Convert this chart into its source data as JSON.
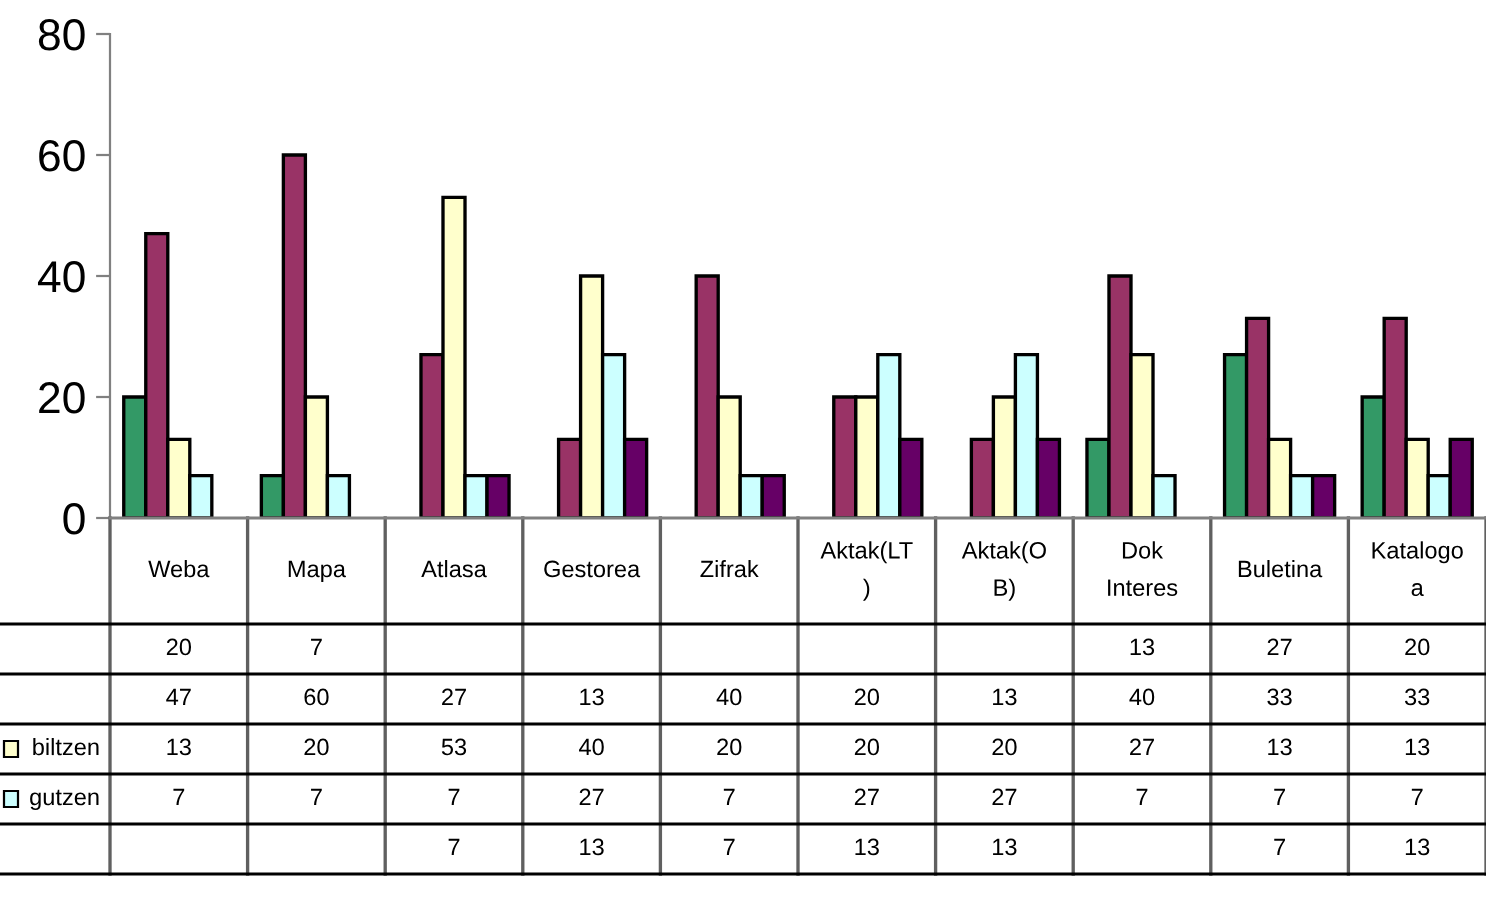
{
  "chart_data": {
    "type": "bar",
    "categories": [
      "Weba",
      "Mapa",
      "Atlasa",
      "Gestorea",
      "Zifrak",
      "Aktak(LT\n)",
      "Aktak(O\nB)",
      "Dok\nInteres",
      "Buletina",
      "Katalogo\na"
    ],
    "series": [
      {
        "color": "#339966",
        "values": [
          20,
          7,
          null,
          null,
          null,
          null,
          null,
          13,
          27,
          20
        ]
      },
      {
        "color": "#993366",
        "values": [
          47,
          60,
          27,
          13,
          40,
          20,
          13,
          40,
          33,
          33
        ]
      },
      {
        "name": "biltzen",
        "color": "#ffffcc",
        "values": [
          13,
          20,
          53,
          40,
          20,
          20,
          20,
          27,
          13,
          13
        ]
      },
      {
        "name": "gutzen",
        "color": "#ccffff",
        "values": [
          7,
          7,
          7,
          27,
          7,
          27,
          27,
          7,
          7,
          7
        ]
      },
      {
        "color": "#660066",
        "values": [
          null,
          null,
          7,
          13,
          7,
          13,
          13,
          null,
          7,
          13
        ]
      }
    ],
    "ylim": [
      0,
      80
    ],
    "yticks": [
      0,
      20,
      40,
      60,
      80
    ],
    "grid": false,
    "legend": "bottom left",
    "data_labels": true
  }
}
